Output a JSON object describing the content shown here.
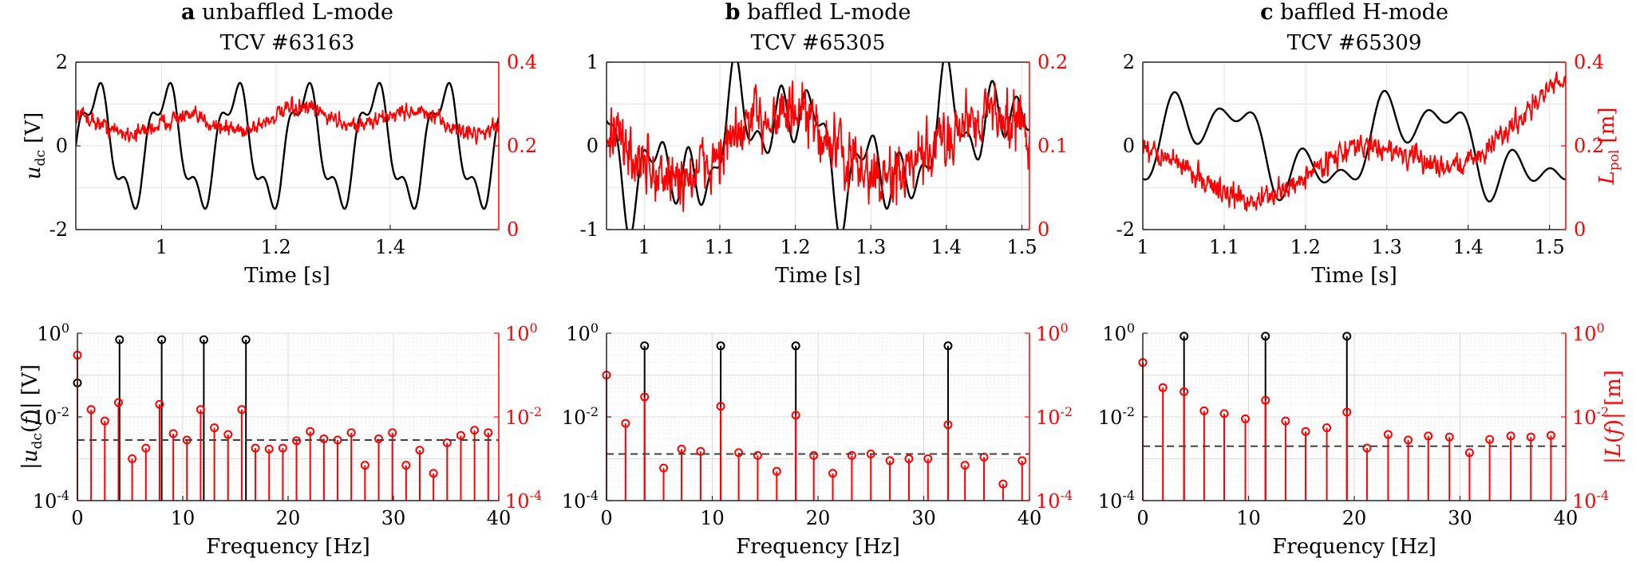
{
  "figure": {
    "ytick_left_time": [
      [
        "2",
        "0",
        "-2"
      ],
      [
        "1",
        "0",
        "-1"
      ],
      [
        "2",
        "0",
        "-2"
      ]
    ],
    "ytick_right_time": [
      [
        "0.4",
        "0.2",
        "0"
      ],
      [
        "0.2",
        "0.1",
        "0"
      ],
      [
        "0.4",
        "0.2",
        "0"
      ]
    ]
  },
  "chart_data": [
    {
      "type": "line",
      "panel_letter": "a",
      "title": "unbaffled L-mode",
      "subtitle": "TCV #63163",
      "xlabel": "Time [s]",
      "ylabel_left": "u_dc [V]",
      "ylabel_right": "",
      "xlim": [
        0.85,
        1.59
      ],
      "ylim_left": [
        -2,
        2
      ],
      "ylim_right": [
        0,
        0.4
      ],
      "xticks": [
        1,
        1.2,
        1.4
      ],
      "xtick_labels": [
        "1",
        "1.2",
        "1.4"
      ],
      "series": [
        {
          "name": "u_dc",
          "axis": "left",
          "color": "#000000",
          "components": [
            [
              1.3,
              8.2,
              0.0
            ],
            [
              0.4,
              24.6,
              1.2
            ]
          ],
          "noise": 0.0
        },
        {
          "name": "L_pol",
          "axis": "right",
          "color": "#ff0000",
          "base": 0.26,
          "components": [
            [
              0.02,
              5.0,
              0.3
            ],
            [
              0.012,
              1.6,
              1.0
            ]
          ],
          "noise": 0.028
        }
      ]
    },
    {
      "type": "line",
      "panel_letter": "b",
      "title": "baffled L-mode",
      "subtitle": "TCV #65305",
      "xlabel": "Time [s]",
      "ylabel_left": "",
      "ylabel_right": "",
      "xlim": [
        0.95,
        1.51
      ],
      "ylim_left": [
        -1,
        1
      ],
      "ylim_right": [
        0,
        0.2
      ],
      "xticks": [
        1,
        1.1,
        1.2,
        1.3,
        1.4,
        1.5
      ],
      "xtick_labels": [
        "1",
        "1.1",
        "1.2",
        "1.3",
        "1.4",
        "1.5"
      ],
      "series": [
        {
          "name": "u_dc",
          "axis": "left",
          "color": "#000000",
          "components": [
            [
              0.42,
              3.6,
              0.3
            ],
            [
              0.35,
              10.8,
              1.0
            ],
            [
              0.3,
              17.8,
              2.0
            ],
            [
              0.25,
              32.3,
              0.5
            ]
          ],
          "noise": 0.0
        },
        {
          "name": "L_pol",
          "axis": "right",
          "color": "#ff0000",
          "base": 0.1,
          "components": [
            [
              0.04,
              3.6,
              0.0
            ]
          ],
          "noise": 0.05
        }
      ]
    },
    {
      "type": "line",
      "panel_letter": "c",
      "title": "baffled H-mode",
      "subtitle": "TCV #65309",
      "xlabel": "Time [s]",
      "ylabel_left": "",
      "ylabel_right": "L_pol [m]",
      "xlim": [
        1.0,
        1.52
      ],
      "ylim_left": [
        -2,
        2
      ],
      "ylim_right": [
        0,
        0.4
      ],
      "xticks": [
        1,
        1.1,
        1.2,
        1.3,
        1.4,
        1.5
      ],
      "xtick_labels": [
        "1",
        "1.1",
        "1.2",
        "1.3",
        "1.4",
        "1.5"
      ],
      "series": [
        {
          "name": "u_dc",
          "axis": "left",
          "color": "#000000",
          "components": [
            [
              0.8,
              3.9,
              0.2
            ],
            [
              0.5,
              11.6,
              1.5
            ],
            [
              0.4,
              19.4,
              0.7
            ]
          ],
          "noise": 0.0
        },
        {
          "name": "L_pol",
          "axis": "right",
          "color": "#ff0000",
          "base": 0.17,
          "trend": 0.24,
          "components": [
            [
              0.05,
              3.9,
              2.0
            ]
          ],
          "noise": 0.04
        }
      ]
    },
    {
      "type": "stem",
      "xlabel": "Frequency [Hz]",
      "ylabel_left": "|u_dc(f)| [V]",
      "ylabel_right": "",
      "xlim": [
        0,
        40
      ],
      "ylim": [
        0.0001,
        1
      ],
      "xticks": [
        0,
        10,
        20,
        30,
        40
      ],
      "yticks_left": [
        "10^0",
        "10^{-2}",
        "10^{-4}"
      ],
      "yticks_right": [
        "10^0",
        "10^{-2}",
        "10^{-4}"
      ],
      "threshold": 0.0028,
      "black_stems": {
        "x": [
          0,
          4,
          8,
          12,
          16
        ],
        "y": [
          0.065,
          0.7,
          0.7,
          0.7,
          0.7
        ]
      },
      "red_stems": {
        "x": [
          0,
          1.3,
          2.6,
          3.9,
          5.2,
          6.5,
          7.8,
          9.1,
          10.4,
          11.7,
          13.0,
          14.3,
          15.6,
          16.9,
          18.2,
          19.5,
          20.8,
          22.1,
          23.4,
          24.7,
          26.0,
          27.3,
          28.6,
          29.9,
          31.2,
          32.5,
          33.8,
          35.1,
          36.4,
          37.7,
          39.0
        ],
        "y": [
          0.3,
          0.015,
          0.008,
          0.022,
          0.001,
          0.0018,
          0.02,
          0.004,
          0.0028,
          0.015,
          0.0055,
          0.0038,
          0.015,
          0.0018,
          0.0017,
          0.0018,
          0.0027,
          0.0045,
          0.003,
          0.0028,
          0.0042,
          0.0007,
          0.003,
          0.0042,
          0.0007,
          0.0016,
          0.00045,
          0.0024,
          0.0036,
          0.0048,
          0.0042
        ]
      }
    },
    {
      "type": "stem",
      "xlabel": "Frequency [Hz]",
      "ylabel_left": "",
      "ylabel_right": "",
      "xlim": [
        0,
        40
      ],
      "ylim": [
        0.0001,
        1
      ],
      "xticks": [
        0,
        10,
        20,
        30,
        40
      ],
      "yticks_left": [
        "10^0",
        "10^{-2}",
        "10^{-4}"
      ],
      "yticks_right": [
        "10^0",
        "10^{-2}",
        "10^{-4}"
      ],
      "threshold": 0.0013,
      "black_stems": {
        "x": [
          3.6,
          10.8,
          17.9,
          32.3
        ],
        "y": [
          0.5,
          0.5,
          0.5,
          0.5
        ]
      },
      "red_stems": {
        "x": [
          0,
          1.8,
          3.6,
          5.4,
          7.1,
          8.9,
          10.8,
          12.5,
          14.3,
          16.1,
          17.9,
          19.6,
          21.4,
          23.2,
          25.0,
          26.8,
          28.6,
          30.4,
          32.3,
          33.9,
          35.7,
          37.5,
          39.3
        ],
        "y": [
          0.1,
          0.007,
          0.03,
          0.0006,
          0.0017,
          0.0015,
          0.018,
          0.0014,
          0.0012,
          0.0005,
          0.011,
          0.0012,
          0.00045,
          0.0012,
          0.0013,
          0.0009,
          0.001,
          0.001,
          0.0065,
          0.0007,
          0.0011,
          0.00025,
          0.0009
        ]
      }
    },
    {
      "type": "stem",
      "xlabel": "Frequency [Hz]",
      "ylabel_left": "",
      "ylabel_right": "|L(f)| [m]",
      "xlim": [
        0,
        40
      ],
      "ylim": [
        0.0001,
        1
      ],
      "xticks": [
        0,
        10,
        20,
        30,
        40
      ],
      "yticks_left": [
        "10^0",
        "10^{-2}",
        "10^{-4}"
      ],
      "yticks_right": [
        "10^0",
        "10^{-2}",
        "10^{-4}"
      ],
      "threshold": 0.002,
      "black_stems": {
        "x": [
          3.9,
          11.6,
          19.3
        ],
        "y": [
          0.85,
          0.85,
          0.85
        ]
      },
      "red_stems": {
        "x": [
          0,
          1.9,
          3.9,
          5.8,
          7.7,
          9.7,
          11.6,
          13.5,
          15.4,
          17.4,
          19.3,
          21.2,
          23.2,
          25.1,
          27.0,
          29.0,
          30.9,
          32.8,
          34.8,
          36.7,
          38.6
        ],
        "y": [
          0.2,
          0.05,
          0.04,
          0.014,
          0.012,
          0.009,
          0.025,
          0.008,
          0.0045,
          0.0055,
          0.013,
          0.0018,
          0.0038,
          0.0028,
          0.0035,
          0.0033,
          0.0014,
          0.0029,
          0.0035,
          0.0033,
          0.0036
        ]
      }
    }
  ]
}
